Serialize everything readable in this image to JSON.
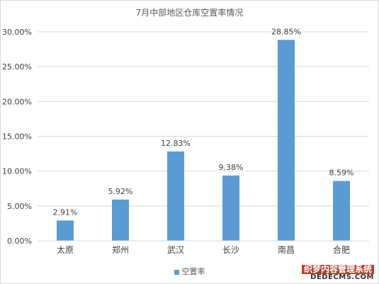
{
  "chart_data": {
    "type": "bar",
    "title": "7月中部地区仓库空置率情况",
    "categories": [
      "太原",
      "郑州",
      "武汉",
      "长沙",
      "南昌",
      "合肥"
    ],
    "series": [
      {
        "name": "空置率",
        "values": [
          2.91,
          5.92,
          12.83,
          9.38,
          28.85,
          8.59
        ],
        "labels": [
          "2.91%",
          "5.92%",
          "12.83%",
          "9.38%",
          "28.85%",
          "8.59%"
        ],
        "color": "#5b9bd5"
      }
    ],
    "ylim": [
      0,
      30
    ],
    "yticks": [
      0,
      5,
      10,
      15,
      20,
      25,
      30
    ],
    "ytick_labels": [
      "0.00%",
      "5.00%",
      "10.00%",
      "15.00%",
      "20.00%",
      "25.00%",
      "30.00%"
    ],
    "xlabel": "",
    "ylabel": "",
    "grid": true,
    "legend": "bottom"
  },
  "watermark": {
    "text_cn": "织梦内容管理系统",
    "text_en": "DEDECMS.COM"
  },
  "colors": {
    "bar": "#5b9bd5",
    "grid": "#d9d9d9",
    "text": "#404040"
  }
}
